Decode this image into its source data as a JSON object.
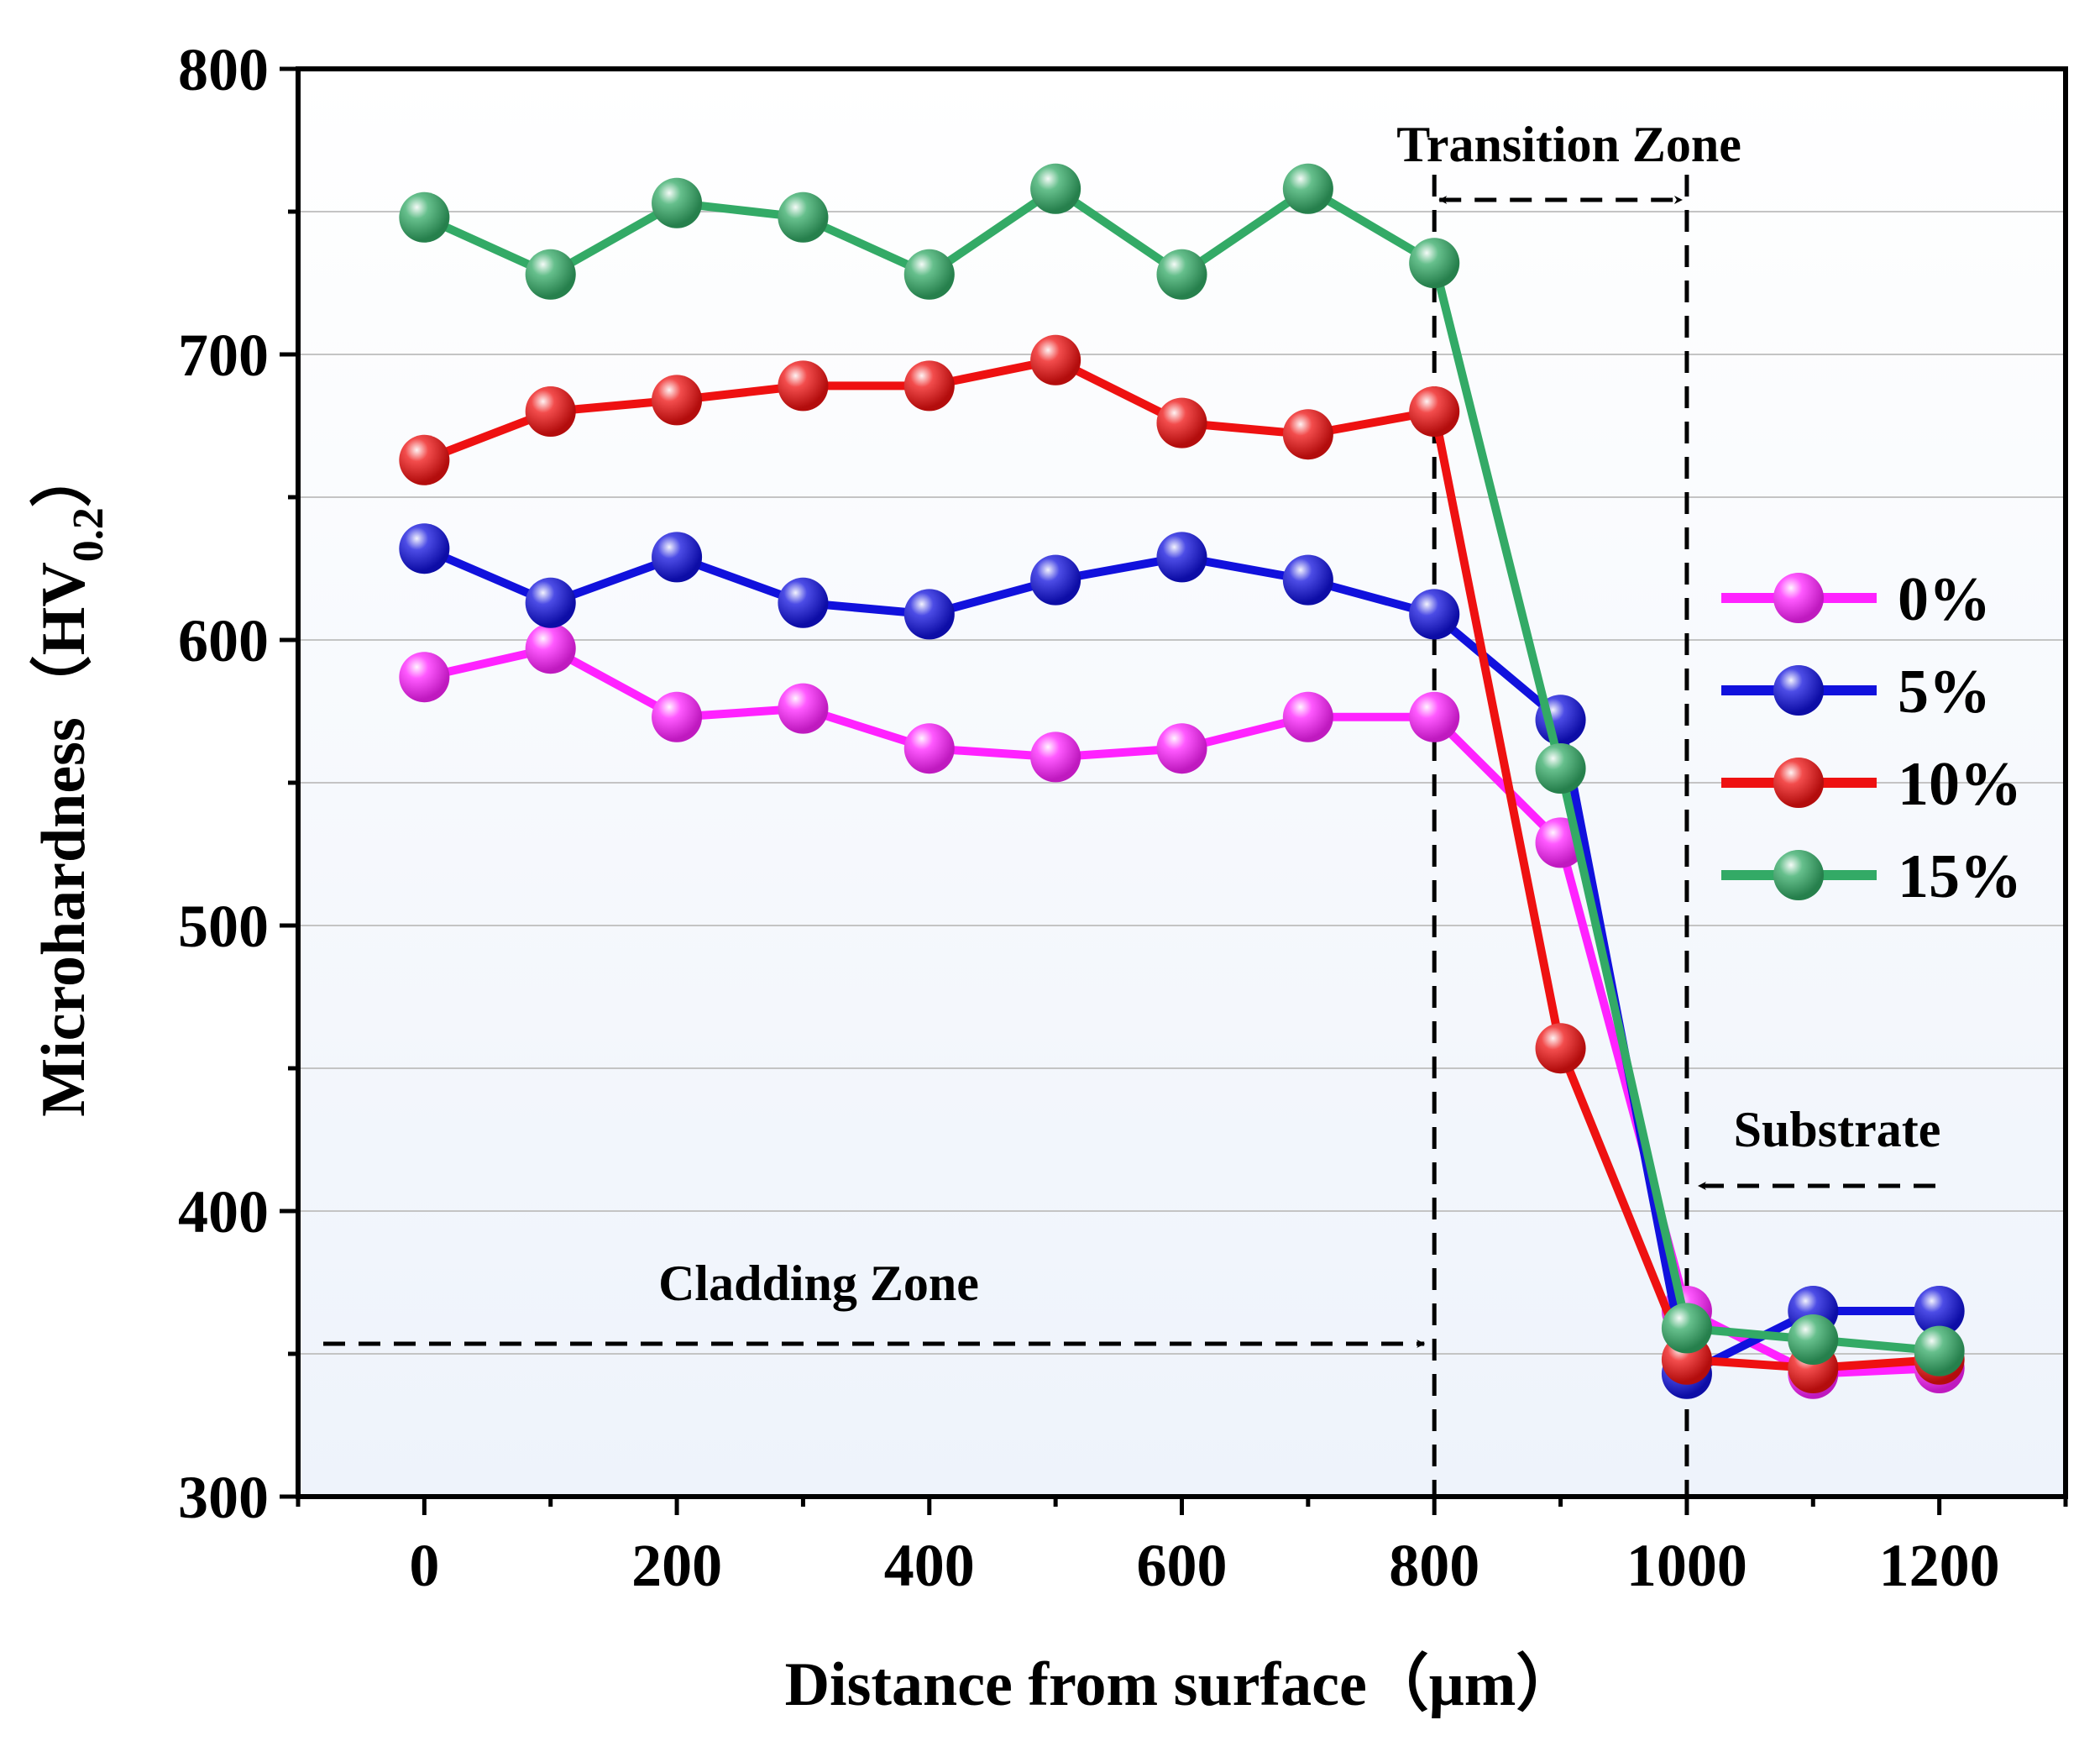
{
  "chart_data": {
    "type": "line",
    "xlabel": "Distance from surface（μm）",
    "ylabel": "Microhardness（HV",
    "ylabel_sub": "0.2",
    "ylabel_close": "）",
    "xlim": [
      -100,
      1300
    ],
    "ylim": [
      300,
      800
    ],
    "xticks": [
      0,
      200,
      400,
      600,
      800,
      1000,
      1200
    ],
    "yticks": [
      300,
      400,
      500,
      600,
      700,
      800
    ],
    "x": [
      0,
      100,
      200,
      300,
      400,
      500,
      600,
      700,
      800,
      900,
      1000,
      1100,
      1200
    ],
    "series": [
      {
        "name": "0%",
        "color": "#ff22ff",
        "values": [
          587,
          597,
          573,
          576,
          562,
          559,
          562,
          573,
          573,
          529,
          365,
          343,
          345
        ]
      },
      {
        "name": "5%",
        "color": "#1111dd",
        "values": [
          632,
          613,
          629,
          613,
          609,
          621,
          629,
          621,
          609,
          572,
          343,
          365,
          365
        ]
      },
      {
        "name": "10%",
        "color": "#ee1111",
        "values": [
          663,
          680,
          684,
          689,
          689,
          698,
          676,
          672,
          680,
          457,
          348,
          345,
          348
        ]
      },
      {
        "name": "15%",
        "color": "#33aa66",
        "values": [
          748,
          728,
          753,
          748,
          728,
          758,
          728,
          758,
          732,
          555,
          359,
          355,
          351
        ]
      }
    ],
    "annotations": {
      "transition_zone": {
        "label": "Transition Zone",
        "x_start": 800,
        "x_end": 1000
      },
      "substrate": {
        "label": "Substrate",
        "arrow_to_x": 1000
      },
      "cladding_zone": {
        "label": "Cladding Zone",
        "arrow_to_x": 800
      }
    },
    "legend_position": "right-middle",
    "grid": true,
    "background_gradient": [
      "#ffffff",
      "#eef3fb"
    ]
  }
}
